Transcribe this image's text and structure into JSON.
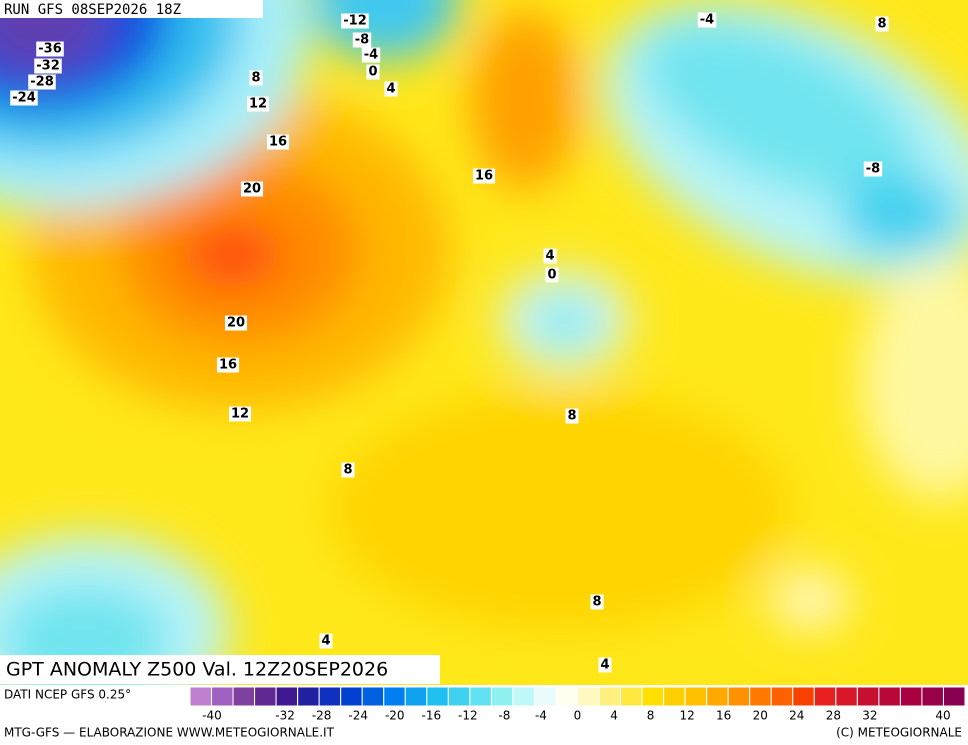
{
  "header": {
    "run": "RUN GFS 08SEP2026 18Z"
  },
  "map": {
    "title": "GPT ANOMALY Z500 Val. 12Z20SEP2026",
    "contour_labels": [
      -36,
      -32,
      -28,
      -24,
      -12,
      -8,
      -4,
      0,
      4,
      -4,
      8,
      8,
      12,
      16,
      20,
      16,
      4,
      0,
      -8,
      20,
      16,
      12,
      8,
      8,
      8,
      4,
      4
    ]
  },
  "footer": {
    "source": "DATI NCEP GFS 0.25°",
    "credit": "MTG-GFS — ELABORAZIONE WWW.METEOGIORNALE.IT",
    "copyright": "(C) METEOGIORNALE"
  },
  "colorbar": {
    "labels": [
      -40,
      -32,
      -28,
      -24,
      -20,
      -16,
      -12,
      -8,
      -4,
      0,
      4,
      8,
      12,
      16,
      20,
      24,
      28,
      32,
      40
    ],
    "colors": [
      "#c080d0",
      "#a060c0",
      "#8040a0",
      "#602890",
      "#401890",
      "#2020a0",
      "#1030c0",
      "#0040d0",
      "#0060e0",
      "#0080f0",
      "#10a0f0",
      "#20c0f0",
      "#40d0f0",
      "#60e0f0",
      "#90f0f0",
      "#c0f8f8",
      "#e8fcfc",
      "#fffff0",
      "#fff8c0",
      "#fff080",
      "#ffe840",
      "#ffe000",
      "#ffd000",
      "#ffc000",
      "#ffa800",
      "#ff9000",
      "#ff7800",
      "#ff6000",
      "#f84000",
      "#e82020",
      "#d81828",
      "#c81030",
      "#b80838",
      "#a80040",
      "#980048",
      "#880050"
    ]
  }
}
